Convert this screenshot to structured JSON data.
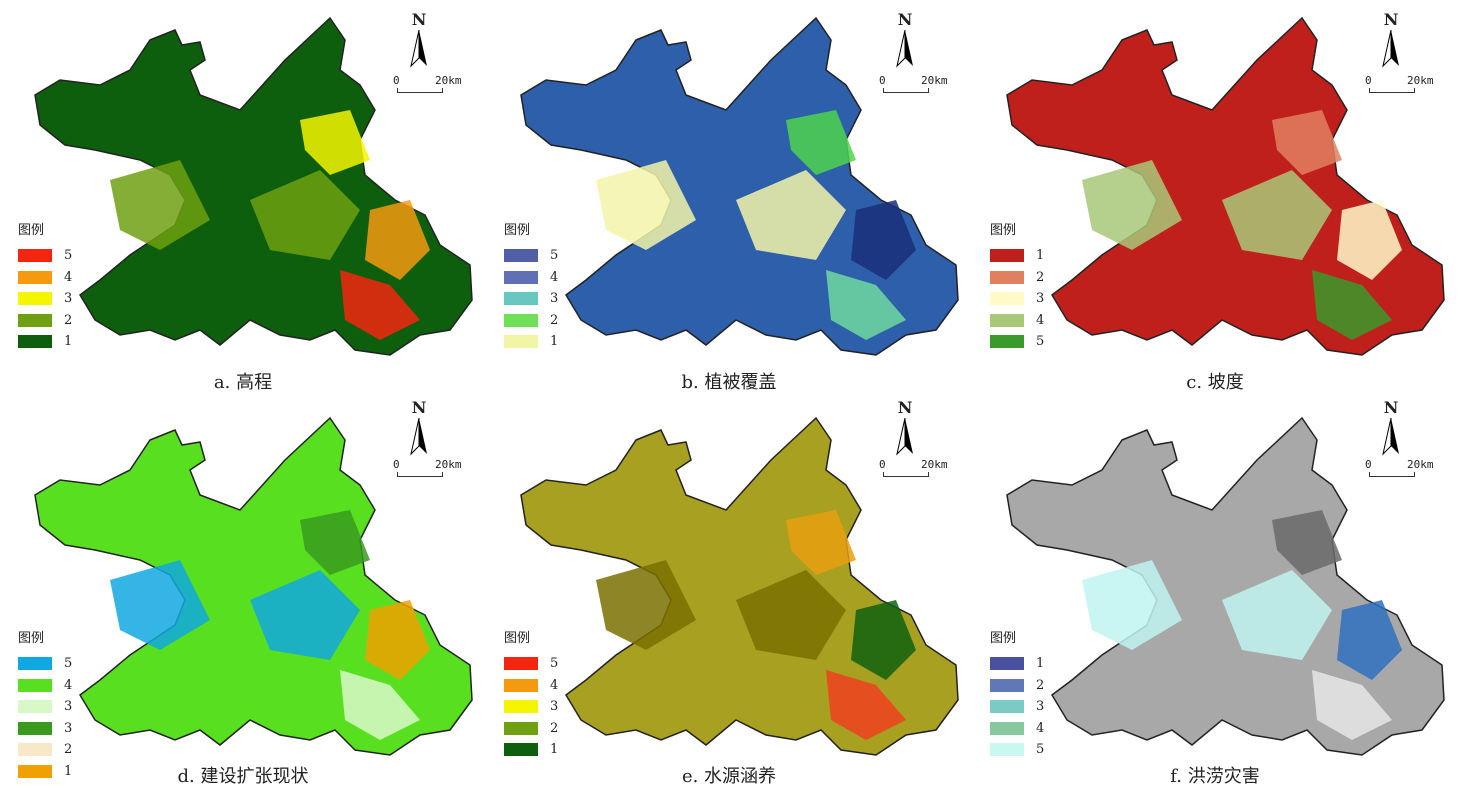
{
  "map_common": {
    "north": "N",
    "scale_zero": "0",
    "scale_end": "20km",
    "legend_title": "图例"
  },
  "panels": [
    {
      "caption": "a. 高程",
      "base": "#0d5f0d",
      "patches": [
        "#6fa012",
        "#f5f500",
        "#f59a0f",
        "#f52510",
        "#6fa012"
      ],
      "legend": [
        {
          "label": "5",
          "color": "#f52510"
        },
        {
          "label": "4",
          "color": "#f59a0f"
        },
        {
          "label": "3",
          "color": "#f5f500"
        },
        {
          "label": "2",
          "color": "#6fa012"
        },
        {
          "label": "1",
          "color": "#0d5f0d"
        }
      ]
    },
    {
      "caption": "b. 植被覆盖",
      "base": "#2d5faa",
      "patches": [
        "#f3f4a8",
        "#4fd34f",
        "#1a2f7a",
        "#6fd9a0",
        "#f3f4a8"
      ],
      "legend": [
        {
          "label": "5",
          "color": "#5060a8"
        },
        {
          "label": "4",
          "color": "#6070b4"
        },
        {
          "label": "3",
          "color": "#68c8c0"
        },
        {
          "label": "2",
          "color": "#70e058"
        },
        {
          "label": "1",
          "color": "#f2f4a6"
        }
      ]
    },
    {
      "caption": "c. 坡度",
      "base": "#c0201c",
      "patches": [
        "#a8c878",
        "#e08060",
        "#fffac8",
        "#3a9a2a",
        "#a8c878"
      ],
      "legend": [
        {
          "label": "1",
          "color": "#c0201c"
        },
        {
          "label": "2",
          "color": "#e08060"
        },
        {
          "label": "3",
          "color": "#fffac8"
        },
        {
          "label": "4",
          "color": "#a8c878"
        },
        {
          "label": "5",
          "color": "#3a9a2a"
        }
      ]
    },
    {
      "caption": "d. 建设扩张现状",
      "base": "#58e020",
      "patches": [
        "#10a8e0",
        "#3a9a1e",
        "#f0a000",
        "#d8f8c8",
        "#10a8e0"
      ],
      "legend": [
        {
          "label": "5",
          "color": "#10a8e0"
        },
        {
          "label": "4",
          "color": "#58e020"
        },
        {
          "label": "3",
          "color": "#d8f8c8"
        },
        {
          "label": "3",
          "color": "#3a9a1e"
        },
        {
          "label": "2",
          "color": "#f8e8c8"
        },
        {
          "label": "1",
          "color": "#f0a000"
        }
      ]
    },
    {
      "caption": "e. 水源涵养",
      "base": "#a8a020",
      "patches": [
        "#7a7000",
        "#e8a010",
        "#0f6010",
        "#f04020",
        "#7a7000"
      ],
      "legend": [
        {
          "label": "5",
          "color": "#f52510"
        },
        {
          "label": "4",
          "color": "#f59a0f"
        },
        {
          "label": "3",
          "color": "#f5f500"
        },
        {
          "label": "2",
          "color": "#6fa012"
        },
        {
          "label": "1",
          "color": "#0d5f0d"
        }
      ]
    },
    {
      "caption": "f. 洪涝灾害",
      "base": "#a8a8a8",
      "patches": [
        "#c0f4f0",
        "#6a6a6a",
        "#3070c0",
        "#e6e6e6",
        "#c0f4f0"
      ],
      "legend": [
        {
          "label": "1",
          "color": "#4a50a0"
        },
        {
          "label": "2",
          "color": "#6078b8"
        },
        {
          "label": "3",
          "color": "#7ccac4"
        },
        {
          "label": "4",
          "color": "#88c8a0"
        },
        {
          "label": "5",
          "color": "#c8f8f0"
        }
      ]
    }
  ]
}
